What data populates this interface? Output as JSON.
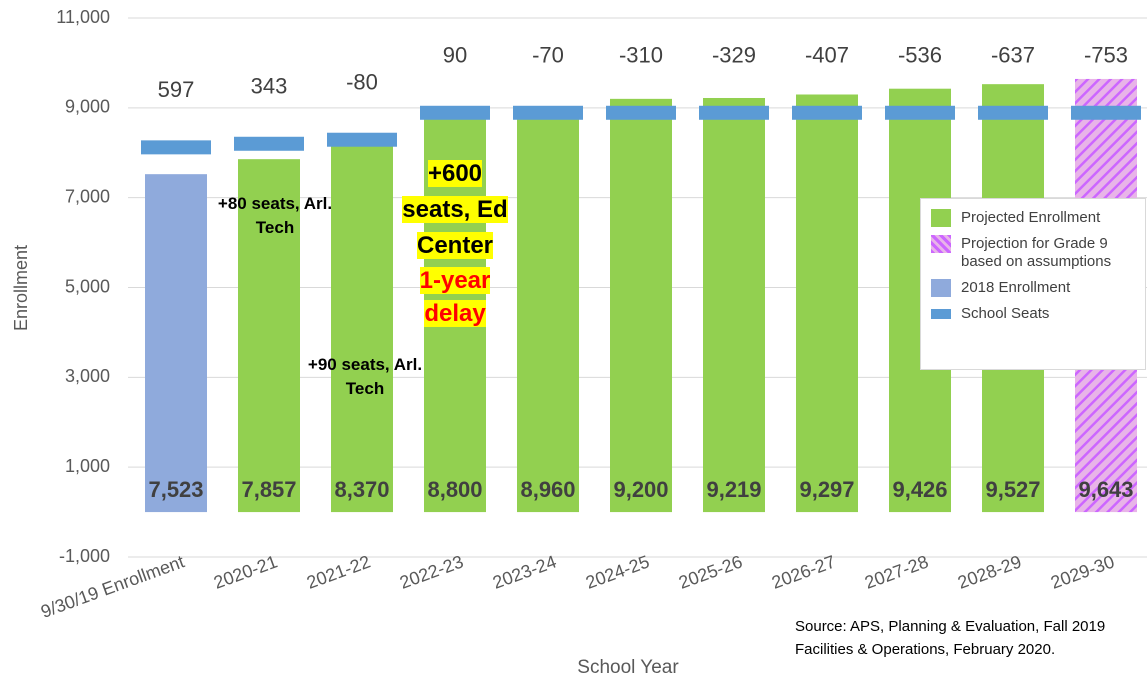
{
  "chart_data": {
    "type": "bar",
    "x_label": "School Year",
    "y_label": "Enrollment",
    "categories": [
      "9/30/19 Enrollment",
      "2020-21",
      "2021-22",
      "2022-23",
      "2023-24",
      "2024-25",
      "2025-26",
      "2026-27",
      "2027-28",
      "2028-29",
      "2029-30"
    ],
    "series": [
      {
        "name": "Projected Enrollment",
        "color": "#92d050",
        "values": [
          null,
          7857,
          8370,
          8800,
          8960,
          9200,
          9219,
          9297,
          9426,
          9527,
          null
        ],
        "value_labels": [
          null,
          "7,857",
          "8,370",
          "8,800",
          "8,960",
          "9,200",
          "9,219",
          "9,297",
          "9,426",
          "9,527",
          null
        ]
      },
      {
        "name": "Projection for Grade 9 based on assumptions",
        "color": "#cc66ff",
        "pattern": "hatch",
        "values": [
          null,
          null,
          null,
          null,
          null,
          null,
          null,
          null,
          null,
          null,
          9643
        ],
        "value_labels": [
          null,
          null,
          null,
          null,
          null,
          null,
          null,
          null,
          null,
          null,
          "9,643"
        ]
      },
      {
        "name": "2018 Enrollment",
        "color": "#8faadc",
        "values": [
          7523,
          null,
          null,
          null,
          null,
          null,
          null,
          null,
          null,
          null,
          null
        ],
        "value_labels": [
          "7,523",
          null,
          null,
          null,
          null,
          null,
          null,
          null,
          null,
          null,
          null
        ]
      },
      {
        "name": "School Seats",
        "color": "#5b9bd5",
        "mark": "dash",
        "values": [
          8120,
          8200,
          8290,
          8890,
          8890,
          8890,
          8890,
          8890,
          8890,
          8890,
          8890
        ]
      }
    ],
    "seat_balance": [
      597,
      343,
      -80,
      90,
      -70,
      -310,
      -329,
      -407,
      -536,
      -637,
      -753
    ],
    "ylim": [
      -1000,
      11000
    ],
    "yticks": [
      {
        "value": -1000,
        "label": "-1,000"
      },
      {
        "value": 1000,
        "label": "1,000"
      },
      {
        "value": 3000,
        "label": "3,000"
      },
      {
        "value": 5000,
        "label": "5,000"
      },
      {
        "value": 7000,
        "label": "7,000"
      },
      {
        "value": 9000,
        "label": "9,000"
      },
      {
        "value": 11000,
        "label": "11,000"
      }
    ],
    "grid": true,
    "legend": "right",
    "annotations": [
      {
        "text": "+80 seats, Arl. Tech"
      },
      {
        "text": "+90 seats, Arl. Tech"
      },
      {
        "text": "+600 seats, Ed Center",
        "highlight": "#ffff00"
      },
      {
        "text": "1-year delay",
        "color": "#ff0000",
        "highlight": "#ffff00"
      }
    ],
    "source": [
      "Source:  APS, Planning & Evaluation, Fall 2019",
      "Facilities & Operations, February 2020."
    ]
  }
}
